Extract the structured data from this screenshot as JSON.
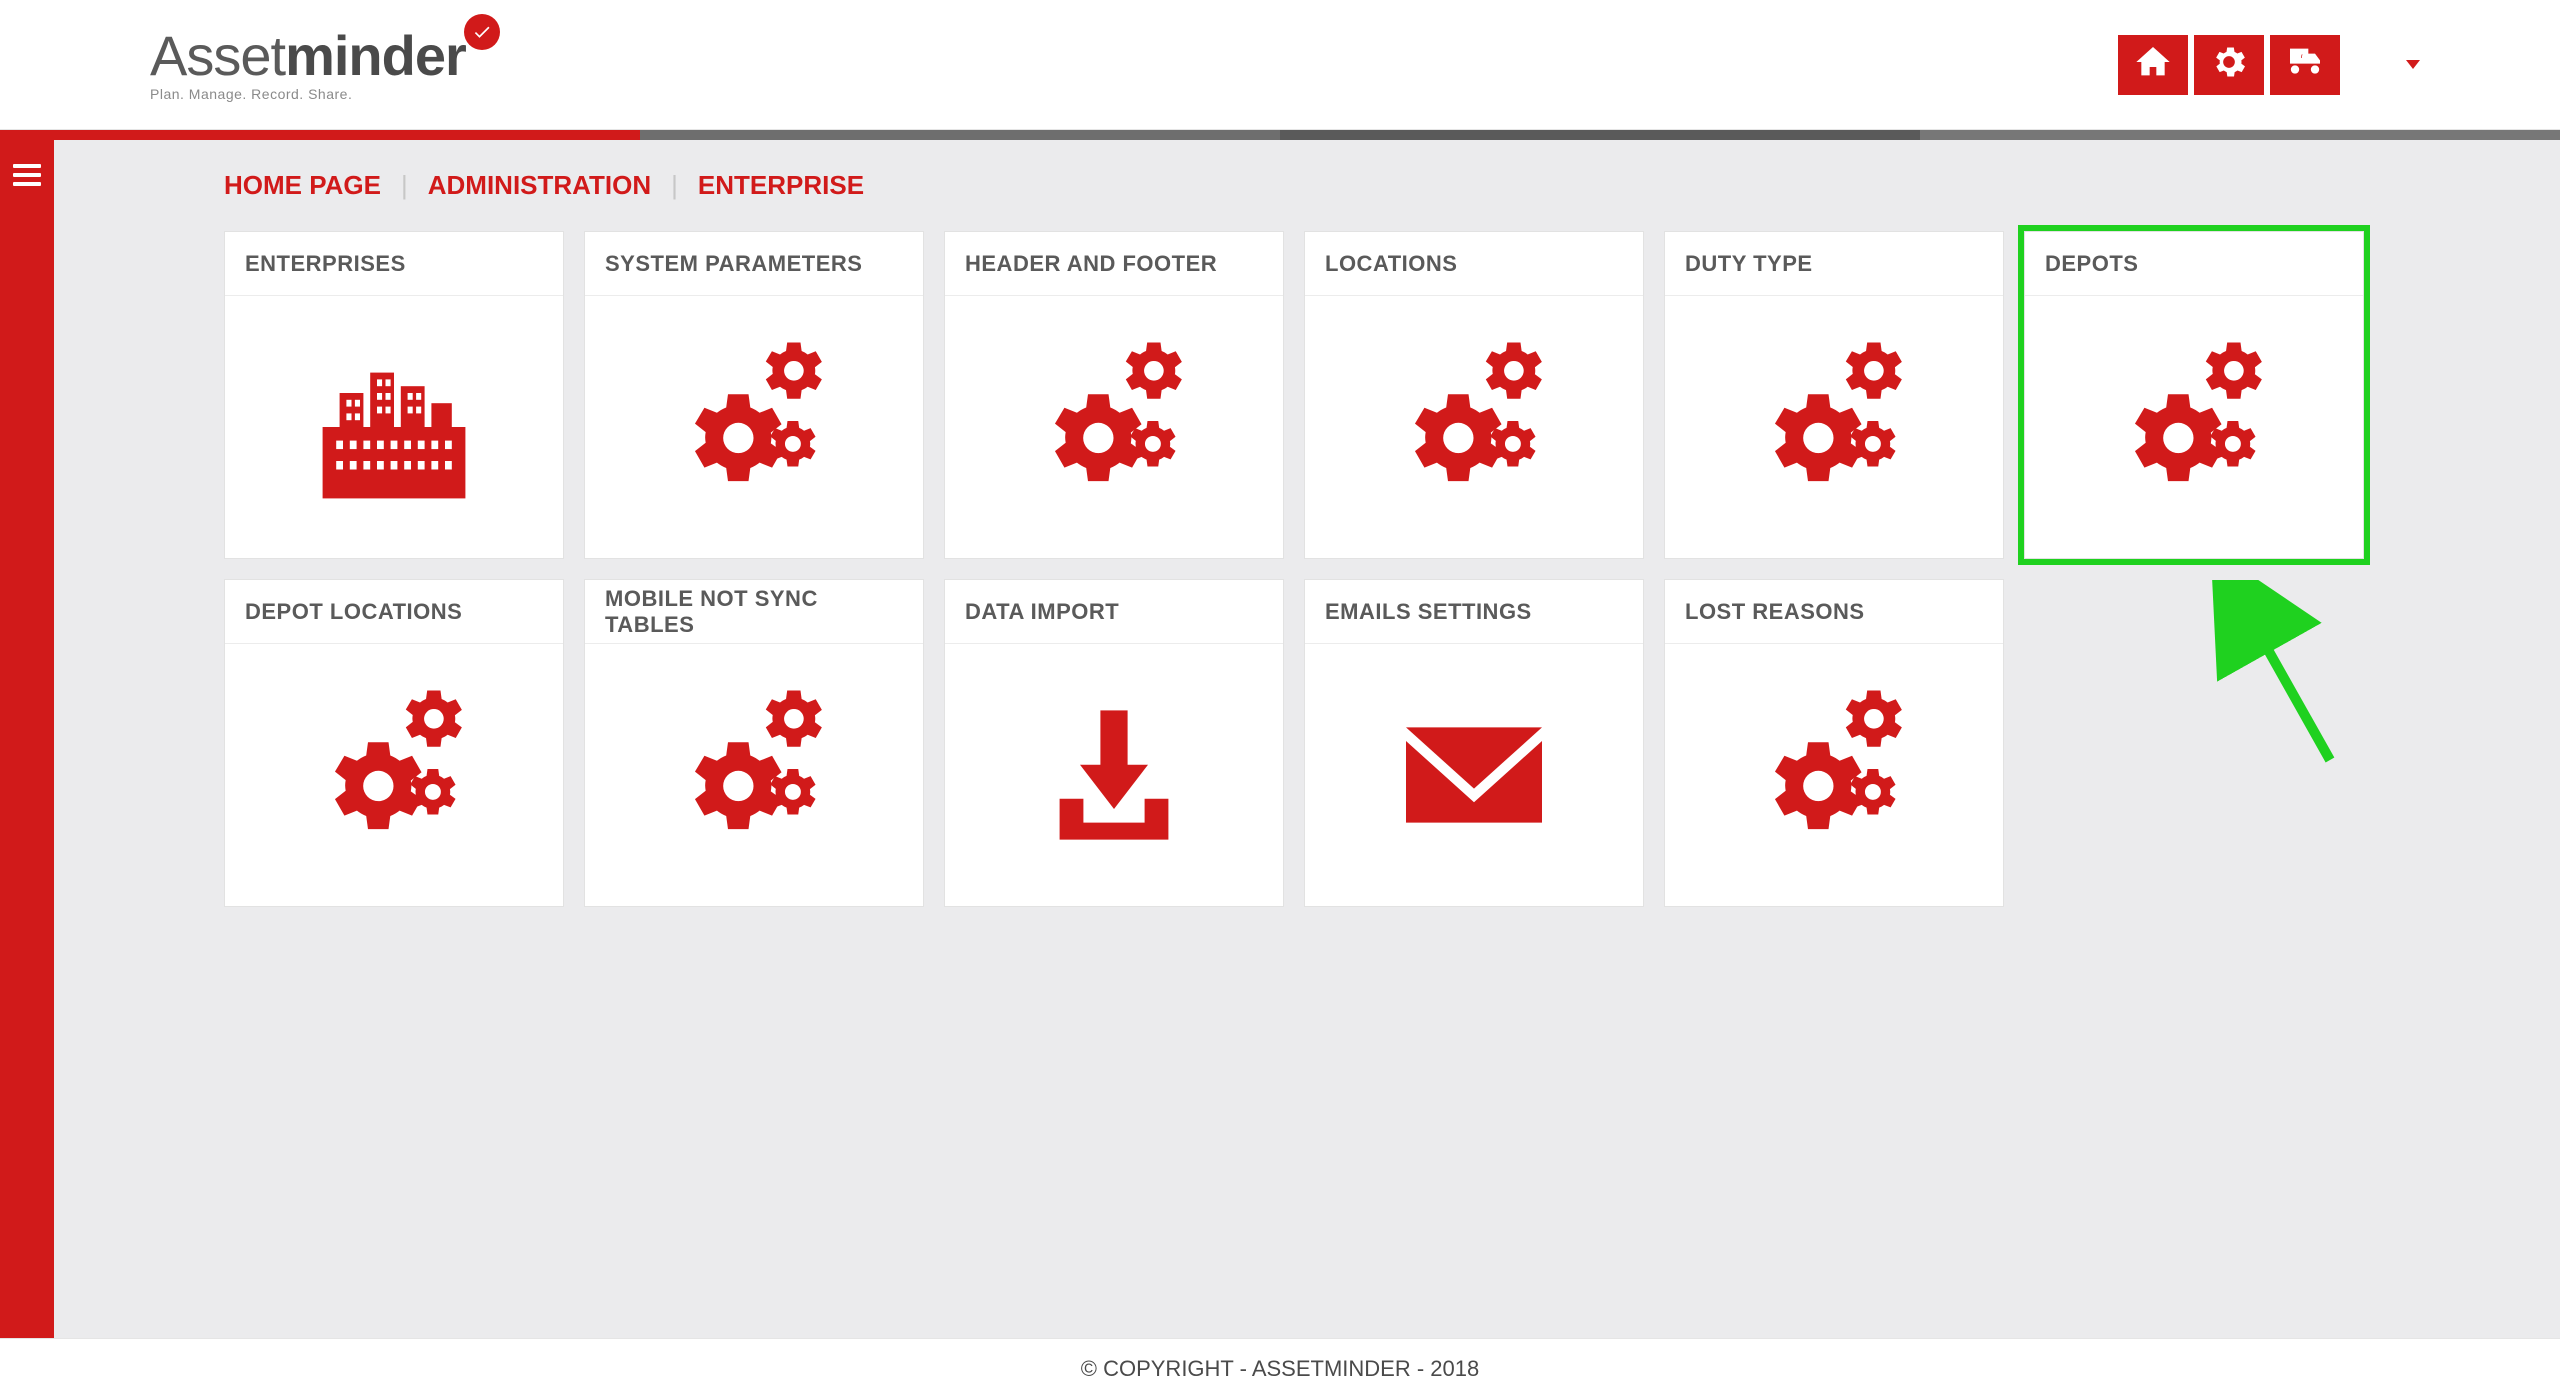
{
  "colors": {
    "brand_red": "#d11a1a",
    "page_bg": "#ebebed",
    "card_bg": "#ffffff",
    "card_border": "#e2e2e2",
    "text_muted": "#5a5a5a",
    "highlight_green": "#1fd11f"
  },
  "logo": {
    "part1": "Asset",
    "part2": "minder",
    "tagline": "Plan. Manage. Record. Share."
  },
  "header_icons": [
    {
      "name": "home-icon"
    },
    {
      "name": "settings-icon"
    },
    {
      "name": "fleet-icon"
    }
  ],
  "breadcrumb": [
    {
      "label": "HOME PAGE"
    },
    {
      "label": "ADMINISTRATION"
    },
    {
      "label": "ENTERPRISE"
    }
  ],
  "cards": [
    {
      "title": "ENTERPRISES",
      "icon": "buildings",
      "highlight": false
    },
    {
      "title": "SYSTEM PARAMETERS",
      "icon": "gears",
      "highlight": false
    },
    {
      "title": "HEADER AND FOOTER",
      "icon": "gears",
      "highlight": false
    },
    {
      "title": "LOCATIONS",
      "icon": "gears",
      "highlight": false
    },
    {
      "title": "DUTY TYPE",
      "icon": "gears",
      "highlight": false
    },
    {
      "title": "DEPOTS",
      "icon": "gears",
      "highlight": true
    },
    {
      "title": "DEPOT LOCATIONS",
      "icon": "gears",
      "highlight": false
    },
    {
      "title": "MOBILE NOT SYNC TABLES",
      "icon": "gears",
      "highlight": false
    },
    {
      "title": "DATA IMPORT",
      "icon": "download",
      "highlight": false
    },
    {
      "title": "EMAILS SETTINGS",
      "icon": "envelope",
      "highlight": false
    },
    {
      "title": "LOST REASONS",
      "icon": "gears",
      "highlight": false
    }
  ],
  "footer": "© COPYRIGHT - ASSETMINDER - 2018",
  "annotation": {
    "type": "arrow",
    "target_card_index": 5,
    "color": "#1fd11f"
  }
}
